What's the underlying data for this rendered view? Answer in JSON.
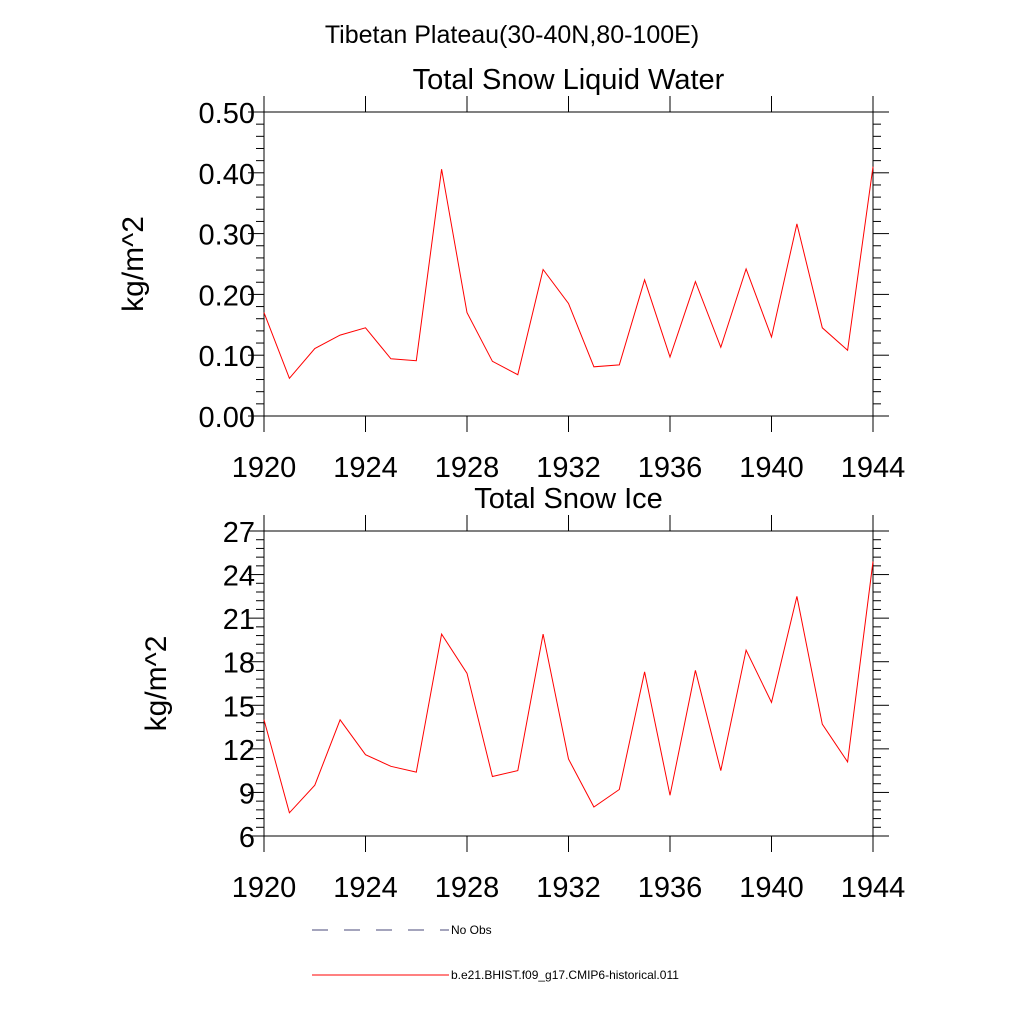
{
  "figure": {
    "suptitle": "Tibetan Plateau(30-40N,80-100E)"
  },
  "chart_data": [
    {
      "type": "line",
      "title": "Total Snow Liquid Water",
      "xlabel": "",
      "ylabel": "kg/m^2",
      "xlim": [
        1920,
        1944
      ],
      "ylim": [
        0,
        0.5
      ],
      "xticks": [
        "1920",
        "1924",
        "1928",
        "1932",
        "1936",
        "1940",
        "1944"
      ],
      "yticks": [
        "0.00",
        "0.10",
        "0.20",
        "0.30",
        "0.40",
        "0.50"
      ],
      "grid": false,
      "x": [
        1920,
        1921,
        1922,
        1923,
        1924,
        1925,
        1926,
        1927,
        1928,
        1929,
        1930,
        1931,
        1932,
        1933,
        1934,
        1935,
        1936,
        1937,
        1938,
        1939,
        1940,
        1941,
        1942,
        1943,
        1944
      ],
      "series": [
        {
          "name": "b.e21.BHIST.f09_g17.CMIP6-historical.011",
          "color": "#ff0000",
          "values": [
            0.17,
            0.062,
            0.111,
            0.133,
            0.145,
            0.094,
            0.091,
            0.406,
            0.17,
            0.09,
            0.068,
            0.241,
            0.185,
            0.081,
            0.084,
            0.224,
            0.097,
            0.221,
            0.113,
            0.242,
            0.13,
            0.316,
            0.145,
            0.108,
            0.41
          ]
        }
      ]
    },
    {
      "type": "line",
      "title": "Total Snow Ice",
      "xlabel": "",
      "ylabel": "kg/m^2",
      "xlim": [
        1920,
        1944
      ],
      "ylim": [
        6,
        27
      ],
      "xticks": [
        "1920",
        "1924",
        "1928",
        "1932",
        "1936",
        "1940",
        "1944"
      ],
      "yticks": [
        "6",
        "9",
        "12",
        "15",
        "18",
        "21",
        "24",
        "27"
      ],
      "grid": false,
      "x": [
        1920,
        1921,
        1922,
        1923,
        1924,
        1925,
        1926,
        1927,
        1928,
        1929,
        1930,
        1931,
        1932,
        1933,
        1934,
        1935,
        1936,
        1937,
        1938,
        1939,
        1940,
        1941,
        1942,
        1943,
        1944
      ],
      "series": [
        {
          "name": "b.e21.BHIST.f09_g17.CMIP6-historical.011",
          "color": "#ff0000",
          "values": [
            14.0,
            7.6,
            9.5,
            14.0,
            11.6,
            10.8,
            10.4,
            19.9,
            17.2,
            10.1,
            10.5,
            19.9,
            11.3,
            8.0,
            9.2,
            17.3,
            8.8,
            17.4,
            10.5,
            18.8,
            15.2,
            22.5,
            13.7,
            11.1,
            24.9
          ]
        }
      ]
    }
  ],
  "legend": {
    "placement": "bottom",
    "items": [
      {
        "label": "No Obs",
        "color": "#4a4a7a",
        "dash": "dashed"
      },
      {
        "label": "b.e21.BHIST.f09_g17.CMIP6-historical.011",
        "color": "#ff0000",
        "dash": "solid"
      }
    ]
  }
}
